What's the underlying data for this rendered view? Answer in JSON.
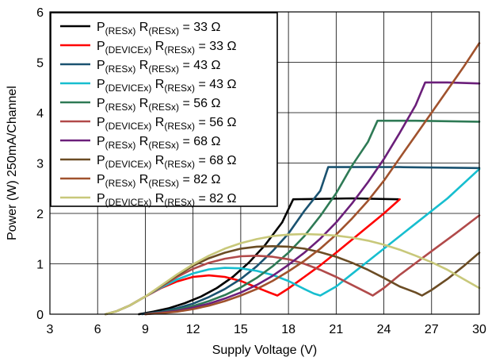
{
  "chart_data": {
    "type": "line",
    "title": "",
    "xlabel": "Supply Voltage (V)",
    "ylabel": "Power (W) 250mA/Channel",
    "xlim": [
      3,
      30
    ],
    "ylim": [
      0,
      6
    ],
    "xticks": [
      "3",
      "6",
      "9",
      "12",
      "15",
      "18",
      "21",
      "24",
      "27",
      "30"
    ],
    "yticks": [
      "0",
      "1",
      "2",
      "3",
      "4",
      "5",
      "6"
    ],
    "grid": true,
    "legend_position": "top-left",
    "series": [
      {
        "name": "P(RESx) R(RESx) = 33 Ω",
        "name_parts": [
          {
            "t": "P",
            "s": false
          },
          {
            "t": "(RESx)",
            "s": true
          },
          {
            "t": " R",
            "s": false
          },
          {
            "t": "(RESx)",
            "s": true
          },
          {
            "t": " = 33 Ω",
            "s": false
          }
        ],
        "color": "#000000",
        "points": [
          [
            8.6,
            0
          ],
          [
            9.5,
            0.05
          ],
          [
            10.5,
            0.12
          ],
          [
            11.5,
            0.22
          ],
          [
            12.5,
            0.35
          ],
          [
            13.5,
            0.52
          ],
          [
            14.5,
            0.74
          ],
          [
            15.5,
            1.02
          ],
          [
            16.5,
            1.36
          ],
          [
            17.6,
            1.82
          ],
          [
            18.3,
            2.28
          ],
          [
            22,
            2.3
          ],
          [
            24.9,
            2.28
          ]
        ]
      },
      {
        "name": "P(DEVICEx) R(RESx) = 33 Ω",
        "name_parts": [
          {
            "t": "P",
            "s": false
          },
          {
            "t": "(DEVICEx)",
            "s": true
          },
          {
            "t": " R",
            "s": false
          },
          {
            "t": "(RESx)",
            "s": true
          },
          {
            "t": " = 33 Ω",
            "s": false
          }
        ],
        "color": "#ff0000",
        "points": [
          [
            6.5,
            0
          ],
          [
            7.2,
            0.06
          ],
          [
            8,
            0.17
          ],
          [
            9,
            0.35
          ],
          [
            10,
            0.52
          ],
          [
            11,
            0.65
          ],
          [
            12,
            0.74
          ],
          [
            13,
            0.77
          ],
          [
            14,
            0.74
          ],
          [
            15,
            0.66
          ],
          [
            16,
            0.53
          ],
          [
            16.8,
            0.43
          ],
          [
            17.3,
            0.37
          ],
          [
            18,
            0.51
          ],
          [
            19,
            0.74
          ],
          [
            20,
            0.97
          ],
          [
            21,
            1.22
          ],
          [
            22,
            1.48
          ],
          [
            23,
            1.74
          ],
          [
            24,
            2.0
          ],
          [
            25,
            2.28
          ]
        ]
      },
      {
        "name": "P(RESx) R(RESx) = 43 Ω",
        "name_parts": [
          {
            "t": "P",
            "s": false
          },
          {
            "t": "(RESx)",
            "s": true
          },
          {
            "t": " R",
            "s": false
          },
          {
            "t": "(RESx)",
            "s": true
          },
          {
            "t": " = 43 Ω",
            "s": false
          }
        ],
        "color": "#1a5270",
        "points": [
          [
            8.8,
            0
          ],
          [
            10,
            0.05
          ],
          [
            11,
            0.12
          ],
          [
            12,
            0.21
          ],
          [
            13,
            0.34
          ],
          [
            14,
            0.5
          ],
          [
            15,
            0.7
          ],
          [
            16,
            0.95
          ],
          [
            17,
            1.25
          ],
          [
            18,
            1.6
          ],
          [
            19,
            2.05
          ],
          [
            20,
            2.45
          ],
          [
            20.5,
            2.92
          ],
          [
            25,
            2.92
          ],
          [
            30,
            2.9
          ]
        ]
      },
      {
        "name": "P(DEVICEx) R(RESx) = 43 Ω",
        "name_parts": [
          {
            "t": "P",
            "s": false
          },
          {
            "t": "(DEVICEx)",
            "s": true
          },
          {
            "t": " R",
            "s": false
          },
          {
            "t": "(RESx)",
            "s": true
          },
          {
            "t": " = 43 Ω",
            "s": false
          }
        ],
        "color": "#17becf",
        "points": [
          [
            6.5,
            0
          ],
          [
            7.2,
            0.06
          ],
          [
            8,
            0.17
          ],
          [
            9,
            0.35
          ],
          [
            10,
            0.53
          ],
          [
            11,
            0.69
          ],
          [
            12,
            0.81
          ],
          [
            13,
            0.89
          ],
          [
            14,
            0.92
          ],
          [
            15,
            0.91
          ],
          [
            16,
            0.86
          ],
          [
            17,
            0.78
          ],
          [
            18,
            0.66
          ],
          [
            19,
            0.5
          ],
          [
            19.6,
            0.41
          ],
          [
            20,
            0.37
          ],
          [
            21,
            0.55
          ],
          [
            22,
            0.8
          ],
          [
            24,
            1.3
          ],
          [
            26,
            1.8
          ],
          [
            28,
            2.3
          ],
          [
            30,
            2.88
          ]
        ]
      },
      {
        "name": "P(RESx) R(RESx) = 56 Ω",
        "name_parts": [
          {
            "t": "P",
            "s": false
          },
          {
            "t": "(RESx)",
            "s": true
          },
          {
            "t": " R",
            "s": false
          },
          {
            "t": "(RESx)",
            "s": true
          },
          {
            "t": " = 56 Ω",
            "s": false
          }
        ],
        "color": "#2e7a55",
        "points": [
          [
            9,
            0
          ],
          [
            10,
            0.04
          ],
          [
            11,
            0.09
          ],
          [
            12,
            0.16
          ],
          [
            13,
            0.26
          ],
          [
            14,
            0.38
          ],
          [
            15,
            0.53
          ],
          [
            16,
            0.72
          ],
          [
            17,
            0.95
          ],
          [
            18,
            1.22
          ],
          [
            19,
            1.55
          ],
          [
            20,
            1.95
          ],
          [
            21,
            2.4
          ],
          [
            22,
            2.95
          ],
          [
            23,
            3.42
          ],
          [
            23.6,
            3.84
          ],
          [
            26,
            3.84
          ],
          [
            30,
            3.82
          ]
        ]
      },
      {
        "name": "P(DEVICEx) R(RESx) = 56 Ω",
        "name_parts": [
          {
            "t": "P",
            "s": false
          },
          {
            "t": "(DEVICEx)",
            "s": true
          },
          {
            "t": " R",
            "s": false
          },
          {
            "t": "(RESx)",
            "s": true
          },
          {
            "t": " = 56 Ω",
            "s": false
          }
        ],
        "color": "#b14a4a",
        "points": [
          [
            6.5,
            0
          ],
          [
            7.2,
            0.06
          ],
          [
            8,
            0.17
          ],
          [
            9,
            0.35
          ],
          [
            10,
            0.55
          ],
          [
            11,
            0.74
          ],
          [
            12,
            0.9
          ],
          [
            13,
            1.02
          ],
          [
            14,
            1.1
          ],
          [
            15,
            1.15
          ],
          [
            16,
            1.16
          ],
          [
            17,
            1.14
          ],
          [
            18,
            1.09
          ],
          [
            19,
            1.0
          ],
          [
            20,
            0.88
          ],
          [
            21,
            0.74
          ],
          [
            22,
            0.58
          ],
          [
            23,
            0.42
          ],
          [
            23.3,
            0.37
          ],
          [
            24,
            0.52
          ],
          [
            25,
            0.78
          ],
          [
            27,
            1.25
          ],
          [
            28.5,
            1.6
          ],
          [
            30,
            1.96
          ]
        ]
      },
      {
        "name": "P(RESx) R(RESx) = 68 Ω",
        "name_parts": [
          {
            "t": "P",
            "s": false
          },
          {
            "t": "(RESx)",
            "s": true
          },
          {
            "t": " R",
            "s": false
          },
          {
            "t": "(RESx)",
            "s": true
          },
          {
            "t": " = 68 Ω",
            "s": false
          }
        ],
        "color": "#6b1f7a",
        "points": [
          [
            9,
            0
          ],
          [
            10,
            0.03
          ],
          [
            11,
            0.07
          ],
          [
            12,
            0.13
          ],
          [
            13,
            0.21
          ],
          [
            14,
            0.31
          ],
          [
            15,
            0.43
          ],
          [
            16,
            0.58
          ],
          [
            17,
            0.76
          ],
          [
            18,
            0.98
          ],
          [
            19,
            1.22
          ],
          [
            20,
            1.5
          ],
          [
            21,
            1.82
          ],
          [
            22,
            2.2
          ],
          [
            23,
            2.62
          ],
          [
            24,
            3.08
          ],
          [
            25,
            3.6
          ],
          [
            26,
            4.15
          ],
          [
            26.6,
            4.6
          ],
          [
            28,
            4.6
          ],
          [
            30,
            4.58
          ]
        ]
      },
      {
        "name": "P(DEVICEx) R(RESx) = 68 Ω",
        "name_parts": [
          {
            "t": "P",
            "s": false
          },
          {
            "t": "(DEVICEx)",
            "s": true
          },
          {
            "t": " R",
            "s": false
          },
          {
            "t": "(RESx)",
            "s": true
          },
          {
            "t": " = 68 Ω",
            "s": false
          }
        ],
        "color": "#6b4c24",
        "points": [
          [
            6.5,
            0
          ],
          [
            7.2,
            0.06
          ],
          [
            8,
            0.17
          ],
          [
            9,
            0.35
          ],
          [
            10,
            0.56
          ],
          [
            11,
            0.77
          ],
          [
            12,
            0.96
          ],
          [
            13,
            1.11
          ],
          [
            14,
            1.22
          ],
          [
            15,
            1.3
          ],
          [
            16,
            1.34
          ],
          [
            17,
            1.35
          ],
          [
            18,
            1.34
          ],
          [
            19,
            1.3
          ],
          [
            20,
            1.23
          ],
          [
            21,
            1.14
          ],
          [
            22,
            1.02
          ],
          [
            23,
            0.88
          ],
          [
            24,
            0.72
          ],
          [
            25,
            0.55
          ],
          [
            26,
            0.43
          ],
          [
            26.4,
            0.37
          ],
          [
            27,
            0.48
          ],
          [
            28,
            0.7
          ],
          [
            29,
            0.95
          ],
          [
            30,
            1.22
          ]
        ]
      },
      {
        "name": "P(RESx) R(RESx) = 82 Ω",
        "name_parts": [
          {
            "t": "P",
            "s": false
          },
          {
            "t": "(RESx)",
            "s": true
          },
          {
            "t": " R",
            "s": false
          },
          {
            "t": "(RESx)",
            "s": true
          },
          {
            "t": " = 82 Ω",
            "s": false
          }
        ],
        "color": "#a0522d",
        "points": [
          [
            9,
            0
          ],
          [
            10,
            0.02
          ],
          [
            11,
            0.05
          ],
          [
            12,
            0.1
          ],
          [
            13,
            0.17
          ],
          [
            14,
            0.26
          ],
          [
            15,
            0.37
          ],
          [
            16,
            0.5
          ],
          [
            17,
            0.66
          ],
          [
            18,
            0.85
          ],
          [
            19,
            1.06
          ],
          [
            20,
            1.3
          ],
          [
            21,
            1.58
          ],
          [
            22,
            1.9
          ],
          [
            23,
            2.25
          ],
          [
            24,
            2.65
          ],
          [
            25,
            3.1
          ],
          [
            26,
            3.55
          ],
          [
            27,
            4.0
          ],
          [
            28,
            4.45
          ],
          [
            29,
            4.9
          ],
          [
            30,
            5.38
          ]
        ]
      },
      {
        "name": "P(DEVICEx) R(RESx) = 82 Ω",
        "name_parts": [
          {
            "t": "P",
            "s": false
          },
          {
            "t": "(DEVICEx)",
            "s": true
          },
          {
            "t": " R",
            "s": false
          },
          {
            "t": "(RESx)",
            "s": true
          },
          {
            "t": " = 82 Ω",
            "s": false
          }
        ],
        "color": "#c8c87a",
        "points": [
          [
            6.5,
            0
          ],
          [
            7.2,
            0.06
          ],
          [
            8,
            0.17
          ],
          [
            9,
            0.35
          ],
          [
            10,
            0.57
          ],
          [
            11,
            0.79
          ],
          [
            12,
            0.99
          ],
          [
            13,
            1.16
          ],
          [
            14,
            1.3
          ],
          [
            15,
            1.41
          ],
          [
            16,
            1.49
          ],
          [
            17,
            1.55
          ],
          [
            18,
            1.58
          ],
          [
            19,
            1.59
          ],
          [
            20,
            1.58
          ],
          [
            21,
            1.56
          ],
          [
            22,
            1.52
          ],
          [
            23,
            1.46
          ],
          [
            24,
            1.38
          ],
          [
            25,
            1.28
          ],
          [
            26,
            1.16
          ],
          [
            27,
            1.03
          ],
          [
            28,
            0.88
          ],
          [
            29,
            0.7
          ],
          [
            30,
            0.52
          ]
        ]
      }
    ]
  }
}
